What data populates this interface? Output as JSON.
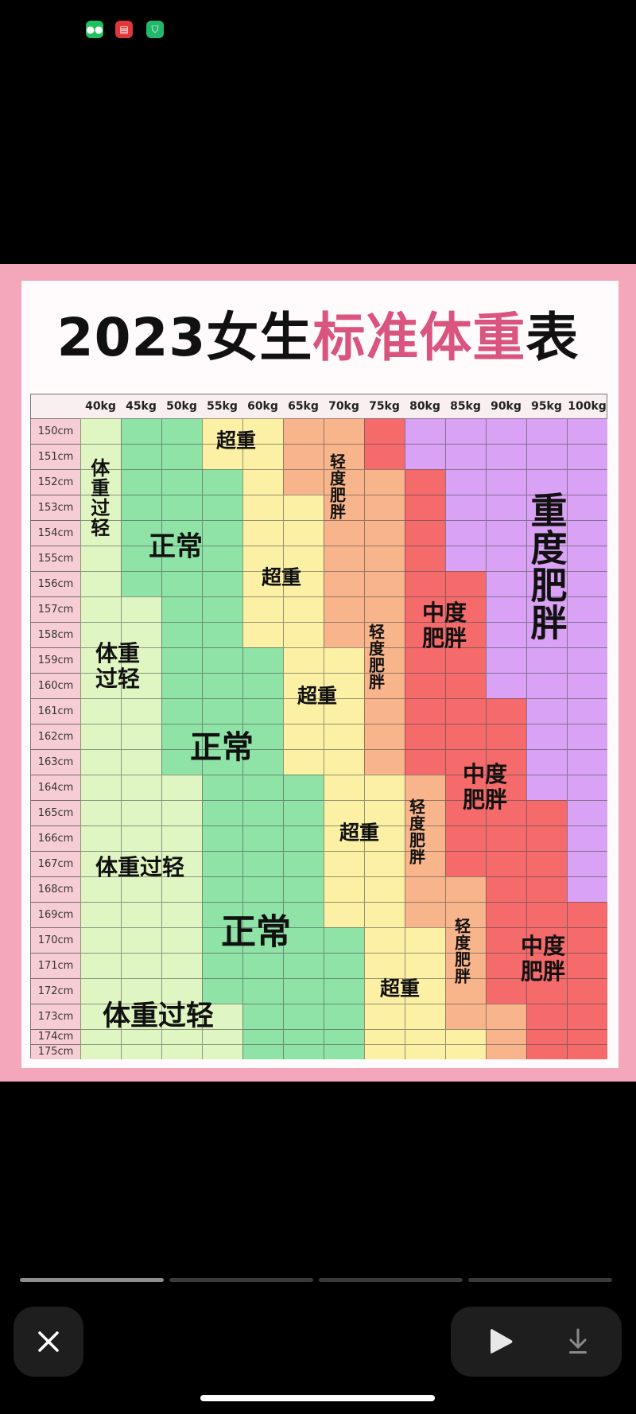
{
  "status_bar": {
    "icons": [
      "wechat-icon",
      "red-envelope-app-icon",
      "security-shield-icon"
    ]
  },
  "chart": {
    "title_black_1": "2023女生",
    "title_pink": "标准体重",
    "title_black_2": "表",
    "title_pink_color": "#d9557f",
    "columns": [
      "40kg",
      "45kg",
      "50kg",
      "55kg",
      "60kg",
      "65kg",
      "70kg",
      "75kg",
      "80kg",
      "85kg",
      "90kg",
      "95kg",
      "100kg"
    ],
    "rows": [
      "150cm",
      "151cm",
      "152cm",
      "153cm",
      "154cm",
      "155cm",
      "156cm",
      "157cm",
      "158cm",
      "159cm",
      "160cm",
      "161cm",
      "162cm",
      "163cm",
      "164cm",
      "165cm",
      "166cm",
      "167cm",
      "168cm",
      "169cm",
      "170cm",
      "171cm",
      "172cm",
      "173cm",
      "174cm",
      "175cm"
    ],
    "categories": {
      "U": {
        "label": "体重过轻",
        "color": "#e0f6c2"
      },
      "N": {
        "label": "正常",
        "color": "#8fe3a6"
      },
      "O": {
        "label": "超重",
        "color": "#fbf0a4"
      },
      "L": {
        "label": "轻度肥胖",
        "color": "#f8b48a"
      },
      "M": {
        "label": "中度肥胖",
        "color": "#f56a6a"
      },
      "S": {
        "label": "重度肥胖",
        "color": "#d9a2f4"
      }
    },
    "cells": [
      "UNNOOLLMSSSSS",
      "UNNOOLLMSSSSS",
      "UNNNOLLLMSSSS",
      "UNNNOOLLMSSSS",
      "UNNNOOLLMSSSS",
      "UNNNOOLLMSSSS",
      "UNNNOOLLMMSSS",
      "UUNNOOLLMMSSS",
      "UUNNOOLLMMSSS",
      "UUNNNOOLMMSSS",
      "UUNNNOOLMMSSS",
      "UUNNNOOLMMMSS",
      "UUNNNOOLMMMSS",
      "UUNNNOOLMMMSS",
      "UUUNNNOOLMMSS",
      "UUUNNNOOLMMMS",
      "UUUNNNOOLMMMS",
      "UUUNNNOOLMMMS",
      "UUUNNNOOLLMMS",
      "UUUNNNOOLLMMM",
      "UUUNNNNOOLMMM",
      "UUUNNNNOOLMMM",
      "UUUNNNNOOLMMM",
      "UUUUNNNOOLLMM",
      "UUUUNNNOOOLMM",
      "UUUUNNNOOOLMM"
    ],
    "region_labels": {
      "overweight": "超重",
      "normal": "正常",
      "underweight": "体重过轻",
      "underweight_l1": "体重",
      "underweight_l2": "过轻",
      "mild_obese": "轻度肥胖",
      "moderate_l1": "中度",
      "moderate_l2": "肥胖",
      "severe": "重度肥胖"
    }
  },
  "viewer": {
    "page_count": 4,
    "current_page": 1,
    "close_icon": "close-icon",
    "play_icon": "play-icon",
    "download_icon": "download-icon"
  }
}
